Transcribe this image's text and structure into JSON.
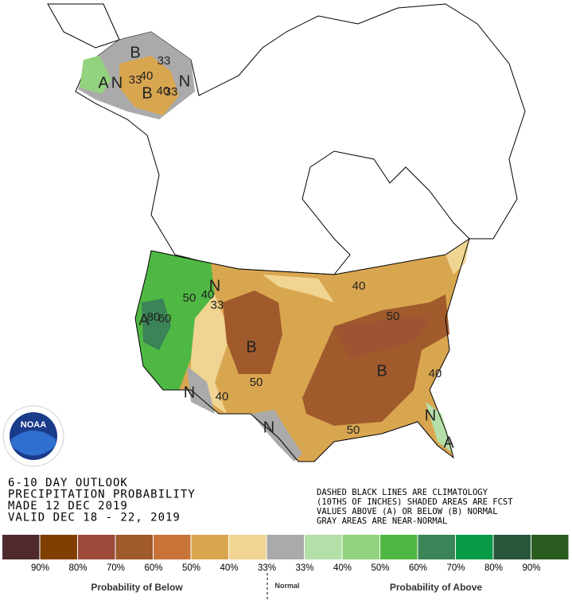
{
  "header": {
    "lines": [
      "6-10 DAY OUTLOOK",
      "PRECIPITATION PROBABILITY",
      "MADE  12 DEC 2019",
      "VALID  DEC 18 - 22, 2019"
    ]
  },
  "notes": [
    "DASHED BLACK LINES ARE CLIMATOLOGY",
    "(10THS OF INCHES) SHADED AREAS ARE FCST",
    "VALUES ABOVE (A) OR BELOW (B) NORMAL",
    "GRAY AREAS ARE NEAR-NORMAL"
  ],
  "logo": "NOAA",
  "map_labels": [
    "B",
    "33",
    "40",
    "33",
    "A",
    "N",
    "B",
    "40",
    "33",
    "N",
    "N",
    "40",
    "50",
    "33",
    "B",
    "50",
    "40",
    "N",
    "N",
    "40",
    "50",
    "B",
    "40",
    "50",
    "N",
    "A",
    "A",
    "80",
    "60"
  ],
  "legend": {
    "colors": [
      "#4e2a2c",
      "#7f3f00",
      "#9c4b3a",
      "#a05a2c",
      "#c87438",
      "#d9a650",
      "#f0d492",
      "#aaaaaa",
      "#b5dfa8",
      "#93d27e",
      "#4fb843",
      "#3b8457",
      "#0a9b48",
      "#28563a",
      "#295a1e"
    ],
    "labels": [
      "90%",
      "80%",
      "70%",
      "60%",
      "50%",
      "40%",
      "33%",
      "33%",
      "40%",
      "50%",
      "60%",
      "70%",
      "80%",
      "90%"
    ],
    "below": "Probability of Below",
    "normal": "Normal",
    "above": "Probability of Above"
  }
}
